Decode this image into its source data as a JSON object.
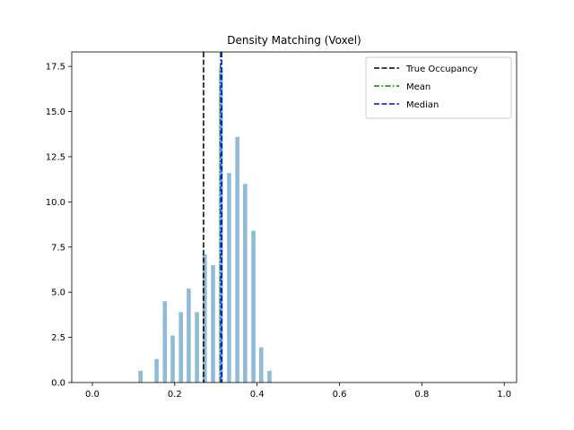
{
  "chart_data": {
    "type": "bar",
    "title": "Density Matching (Voxel)",
    "xlabel": "",
    "ylabel": "",
    "xlim": [
      -0.05,
      1.03
    ],
    "ylim": [
      0,
      18.3
    ],
    "x_ticks": [
      0.0,
      0.2,
      0.4,
      0.6,
      0.8,
      1.0
    ],
    "x_tick_labels": [
      "0.0",
      "0.2",
      "0.4",
      "0.6",
      "0.8",
      "1.0"
    ],
    "y_ticks": [
      0.0,
      2.5,
      5.0,
      7.5,
      10.0,
      12.5,
      15.0,
      17.5
    ],
    "y_tick_labels": [
      "0.0",
      "2.5",
      "5.0",
      "7.5",
      "10.0",
      "12.5",
      "15.0",
      "17.5"
    ],
    "grid": false,
    "bar_color": "#8fbbd9",
    "bar_width": 0.01,
    "bars": [
      {
        "x": 0.117,
        "value": 0.65
      },
      {
        "x": 0.156,
        "value": 1.3
      },
      {
        "x": 0.176,
        "value": 4.5
      },
      {
        "x": 0.195,
        "value": 2.6
      },
      {
        "x": 0.215,
        "value": 3.9
      },
      {
        "x": 0.234,
        "value": 5.2
      },
      {
        "x": 0.254,
        "value": 3.9
      },
      {
        "x": 0.273,
        "value": 7.1
      },
      {
        "x": 0.293,
        "value": 6.5
      },
      {
        "x": 0.312,
        "value": 17.4
      },
      {
        "x": 0.332,
        "value": 11.6
      },
      {
        "x": 0.352,
        "value": 13.6
      },
      {
        "x": 0.371,
        "value": 11.0
      },
      {
        "x": 0.391,
        "value": 8.4
      },
      {
        "x": 0.41,
        "value": 1.95
      },
      {
        "x": 0.43,
        "value": 0.65
      }
    ],
    "vlines": [
      {
        "name": "True Occupancy",
        "x": 0.27,
        "color": "#000000",
        "style": "dashed"
      },
      {
        "name": "Mean",
        "x": 0.311,
        "color": "#008000",
        "style": "dashdot"
      },
      {
        "name": "Median",
        "x": 0.314,
        "color": "#0000ff",
        "style": "dashed"
      }
    ],
    "legend": {
      "position": "top-right",
      "entries": [
        {
          "label": "True Occupancy",
          "color": "#000000",
          "style": "dashed"
        },
        {
          "label": "Mean",
          "color": "#008000",
          "style": "dashdot"
        },
        {
          "label": "Median",
          "color": "#0000ff",
          "style": "dashed"
        }
      ]
    }
  }
}
